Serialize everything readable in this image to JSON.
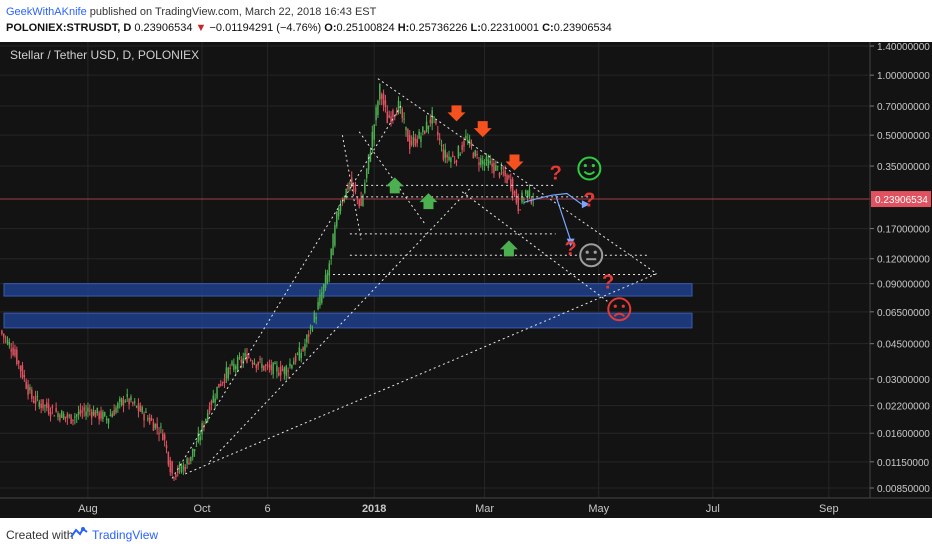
{
  "header": {
    "author": "GeekWithAKnife",
    "published": " published on TradingView.com, March 22, 2018 16:43 EST",
    "symbol": "POLONIEX:STRUSDT, D",
    "last": "0.23906534",
    "change": "−0.01194291 (−4.76%)",
    "o_label": "O:",
    "o": "0.25100824",
    "h_label": "H:",
    "h": "0.25736226",
    "l_label": "L:",
    "l": "0.22310001",
    "c_label": "C:",
    "c": "0.23906534"
  },
  "footer": {
    "created_with": "Created with",
    "brand": "TradingView"
  },
  "colors": {
    "background": "#131313",
    "up": "#4caf50",
    "down": "#e05260",
    "zone": "#1f3f8c",
    "price_line": "#e05260",
    "annotation": "#e53935",
    "smile": "#2ecc40",
    "neutral": "#9e9e9e",
    "arrow_up": "#4caf50",
    "arrow_down": "#f4511e"
  },
  "chart_data": {
    "type": "candlestick",
    "title": "Stellar / Tether USD, D, POLONIEX",
    "y_scale": "log",
    "y_ticks": [
      1.4,
      1.0,
      0.7,
      0.5,
      0.35,
      0.17,
      0.12,
      0.09,
      0.065,
      0.045,
      0.03,
      0.022,
      0.016,
      0.0115,
      0.0085
    ],
    "y_tick_labels": [
      "1.40000000",
      "1.00000000",
      "0.70000000",
      "0.50000000",
      "0.35000000",
      "0.17000000",
      "0.12000000",
      "0.09000000",
      "0.06500000",
      "0.04500000",
      "0.03000000",
      "0.02200000",
      "0.01600000",
      "0.01150000",
      "0.00850000"
    ],
    "x_tick_labels": [
      "Aug",
      "Oct",
      "6",
      "2018",
      "Mar",
      "May",
      "Jul",
      "Sep"
    ],
    "x_tick_days": [
      0,
      61,
      96,
      153,
      212,
      273,
      334,
      396
    ],
    "x_range_days": [
      -47,
      418
    ],
    "last_price": 0.23906534,
    "last_price_label": "0.23906534",
    "candle_anchors": [
      {
        "day": -47,
        "price": 0.052
      },
      {
        "day": -40,
        "price": 0.042
      },
      {
        "day": -30,
        "price": 0.024
      },
      {
        "day": -20,
        "price": 0.021
      },
      {
        "day": -10,
        "price": 0.019
      },
      {
        "day": 0,
        "price": 0.021
      },
      {
        "day": 10,
        "price": 0.019
      },
      {
        "day": 20,
        "price": 0.024
      },
      {
        "day": 30,
        "price": 0.02
      },
      {
        "day": 40,
        "price": 0.016
      },
      {
        "day": 45,
        "price": 0.01
      },
      {
        "day": 52,
        "price": 0.011
      },
      {
        "day": 58,
        "price": 0.014
      },
      {
        "day": 65,
        "price": 0.022
      },
      {
        "day": 70,
        "price": 0.028
      },
      {
        "day": 75,
        "price": 0.033
      },
      {
        "day": 85,
        "price": 0.039
      },
      {
        "day": 95,
        "price": 0.034
      },
      {
        "day": 105,
        "price": 0.033
      },
      {
        "day": 115,
        "price": 0.042
      },
      {
        "day": 122,
        "price": 0.065
      },
      {
        "day": 128,
        "price": 0.1
      },
      {
        "day": 134,
        "price": 0.22
      },
      {
        "day": 140,
        "price": 0.29
      },
      {
        "day": 146,
        "price": 0.22
      },
      {
        "day": 152,
        "price": 0.5
      },
      {
        "day": 156,
        "price": 0.85
      },
      {
        "day": 160,
        "price": 0.6
      },
      {
        "day": 166,
        "price": 0.7
      },
      {
        "day": 172,
        "price": 0.45
      },
      {
        "day": 178,
        "price": 0.5
      },
      {
        "day": 184,
        "price": 0.62
      },
      {
        "day": 190,
        "price": 0.4
      },
      {
        "day": 196,
        "price": 0.38
      },
      {
        "day": 202,
        "price": 0.48
      },
      {
        "day": 208,
        "price": 0.38
      },
      {
        "day": 214,
        "price": 0.36
      },
      {
        "day": 220,
        "price": 0.33
      },
      {
        "day": 226,
        "price": 0.29
      },
      {
        "day": 230,
        "price": 0.22
      },
      {
        "day": 234,
        "price": 0.26
      },
      {
        "day": 238,
        "price": 0.239
      }
    ],
    "support_zones": [
      {
        "low": 0.078,
        "high": 0.09
      },
      {
        "low": 0.054,
        "high": 0.064
      }
    ],
    "annotations": {
      "trend_lines": [
        {
          "from": {
            "day": 155,
            "price": 0.96
          },
          "to": {
            "day": 304,
            "price": 0.101
          }
        },
        {
          "from": {
            "day": 52,
            "price": 0.01
          },
          "to": {
            "day": 304,
            "price": 0.101
          }
        },
        {
          "from": {
            "day": 45,
            "price": 0.0095
          },
          "to": {
            "day": 168,
            "price": 0.72
          }
        },
        {
          "from": {
            "day": 65,
            "price": 0.0115
          },
          "to": {
            "day": 205,
            "price": 0.275
          }
        },
        {
          "from": {
            "day": 200,
            "price": 0.26
          },
          "to": {
            "day": 278,
            "price": 0.073
          }
        },
        {
          "from": {
            "day": 136,
            "price": 0.5
          },
          "to": {
            "day": 146,
            "price": 0.15
          }
        },
        {
          "from": {
            "day": 145,
            "price": 0.52
          },
          "to": {
            "day": 180,
            "price": 0.18
          }
        }
      ],
      "horizontal_levels": [
        {
          "price": 0.28,
          "from_day": 138,
          "to_day": 250
        },
        {
          "price": 0.245,
          "from_day": 138,
          "to_day": 270
        },
        {
          "price": 0.16,
          "from_day": 140,
          "to_day": 250
        },
        {
          "price": 0.125,
          "from_day": 140,
          "to_day": 300
        },
        {
          "price": 0.1,
          "from_day": 131,
          "to_day": 304
        }
      ],
      "down_arrows": [
        {
          "day": 197,
          "price": 0.6
        },
        {
          "day": 211,
          "price": 0.5
        },
        {
          "day": 228,
          "price": 0.34
        }
      ],
      "up_arrows": [
        {
          "day": 164,
          "price": 0.3
        },
        {
          "day": 182,
          "price": 0.25
        },
        {
          "day": 225,
          "price": 0.145
        }
      ],
      "question_marks": [
        {
          "day": 250,
          "price": 0.3
        },
        {
          "day": 268,
          "price": 0.22
        },
        {
          "day": 258,
          "price": 0.125
        },
        {
          "day": 278,
          "price": 0.085
        }
      ],
      "projection_path": [
        {
          "day": 233,
          "price": 0.23
        },
        {
          "day": 240,
          "price": 0.24
        },
        {
          "day": 248,
          "price": 0.25
        },
        {
          "day": 256,
          "price": 0.255
        },
        {
          "day": 264,
          "price": 0.225
        }
      ],
      "projection_branch": {
        "from": {
          "day": 250,
          "price": 0.25
        },
        "to": {
          "day": 258,
          "price": 0.148
        }
      },
      "smileys": [
        {
          "mood": "happy",
          "day": 268,
          "price": 0.34
        },
        {
          "mood": "neutral",
          "day": 269,
          "price": 0.125
        },
        {
          "mood": "sad",
          "day": 284,
          "price": 0.067
        }
      ]
    }
  }
}
